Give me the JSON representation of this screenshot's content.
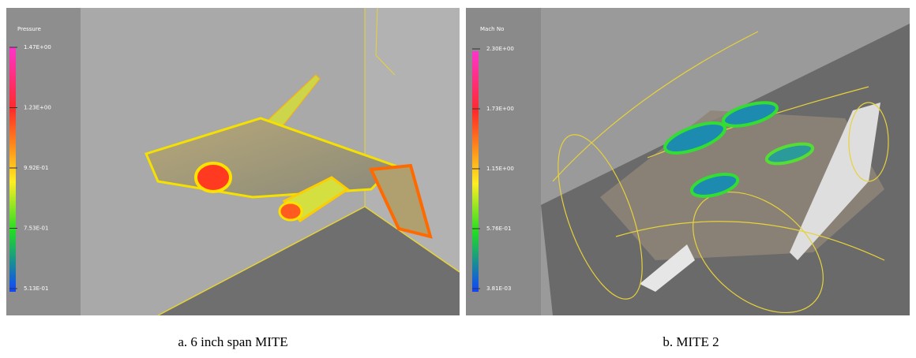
{
  "panels": [
    {
      "legend": {
        "title": "Pressure",
        "labels": [
          "1.47E+00",
          "1.23E+00",
          "9.92E-01",
          "7.53E-01",
          "5.13E-01"
        ]
      },
      "caption": "a. 6 inch span MITE"
    },
    {
      "legend": {
        "title": "Mach No",
        "labels": [
          "2.30E+00",
          "1.73E+00",
          "1.15E+00",
          "5.76E-01",
          "3.81E-03"
        ]
      },
      "caption": "b. MITE 2"
    }
  ]
}
